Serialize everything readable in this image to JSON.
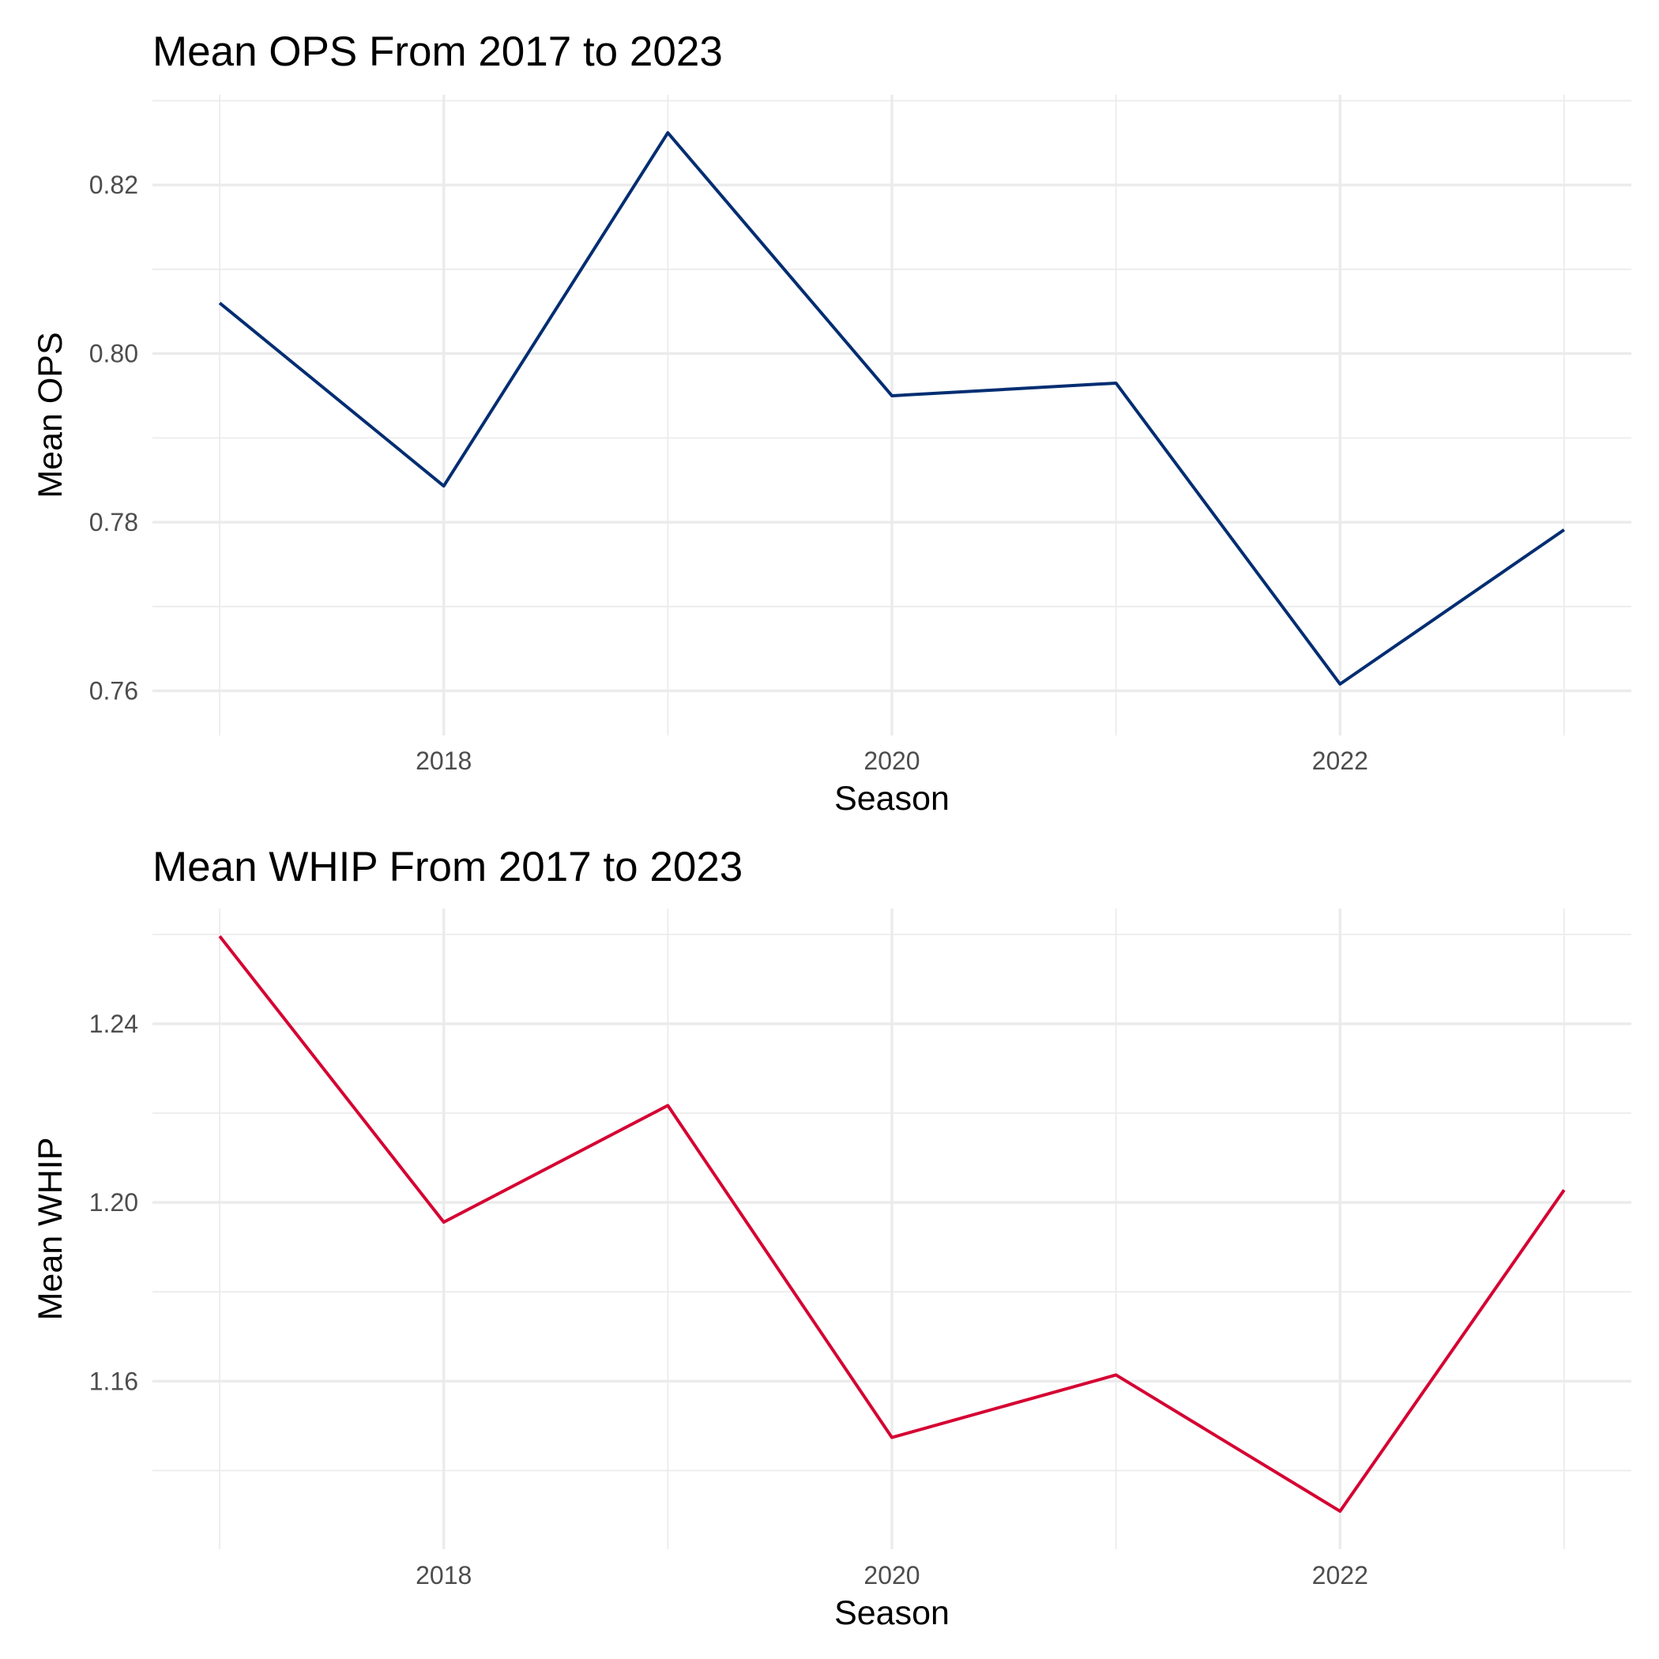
{
  "chart_data": [
    {
      "type": "line",
      "title": "Mean OPS From 2017 to 2023",
      "xlabel": "Season",
      "ylabel": "Mean OPS",
      "x": [
        2017,
        2018,
        2019,
        2020,
        2021,
        2022,
        2023
      ],
      "xlim": [
        2016.7,
        2023.3
      ],
      "x_ticks": [
        2018,
        2020,
        2022
      ],
      "x_tick_labels": [
        "2018",
        "2020",
        "2022"
      ],
      "ylim": [
        0.7547,
        0.8307
      ],
      "y_ticks": [
        0.76,
        0.78,
        0.8,
        0.82
      ],
      "y_tick_labels": [
        "0.76",
        "0.78",
        "0.80",
        "0.82"
      ],
      "grid": true,
      "series": [
        {
          "color": "#002D72",
          "values": [
            0.806,
            0.7843,
            0.8262,
            0.795,
            0.7965,
            0.7608,
            0.7791
          ]
        }
      ]
    },
    {
      "type": "line",
      "title": "Mean WHIP From 2017 to 2023",
      "xlabel": "Season",
      "ylabel": "Mean WHIP",
      "x": [
        2017,
        2018,
        2019,
        2020,
        2021,
        2022,
        2023
      ],
      "xlim": [
        2016.7,
        2023.3
      ],
      "x_ticks": [
        2018,
        2020,
        2022
      ],
      "x_tick_labels": [
        "2018",
        "2020",
        "2022"
      ],
      "ylim": [
        1.1224,
        1.2658
      ],
      "y_ticks": [
        1.16,
        1.2,
        1.24
      ],
      "y_tick_labels": [
        "1.16",
        "1.20",
        "1.24"
      ],
      "grid": true,
      "series": [
        {
          "color": "#D50032",
          "values": [
            1.2596,
            1.1956,
            1.2217,
            1.1474,
            1.1614,
            1.1309,
            1.2028
          ]
        }
      ]
    }
  ]
}
